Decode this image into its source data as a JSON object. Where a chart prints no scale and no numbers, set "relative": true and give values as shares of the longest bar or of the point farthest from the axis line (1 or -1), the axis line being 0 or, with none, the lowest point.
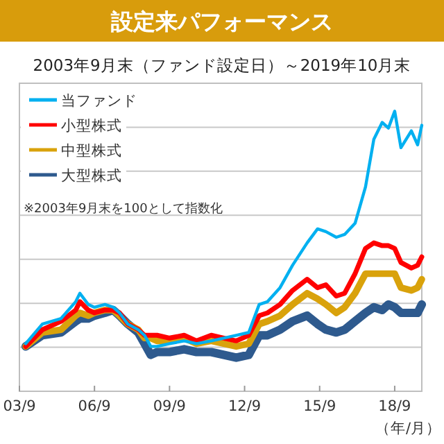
{
  "chart_data": {
    "type": "line",
    "title": "設定来パフォーマンス",
    "subtitle": "2003年9月末（ファンド設定日）～2019年10月末",
    "xlabel": "（年/月）",
    "annotations": [
      "※2003年9月末を100として指数化"
    ],
    "relative": true,
    "grid": "y",
    "legend": "top left",
    "marker": "none",
    "line_style": "solid",
    "xlim": [
      "2003-09",
      "2019-10"
    ],
    "xticks": [
      {
        "value": "2003-09",
        "label": "03/9"
      },
      {
        "value": "2006-09",
        "label": "06/9"
      },
      {
        "value": "2009-09",
        "label": "09/9"
      },
      {
        "value": "2012-09",
        "label": "12/9"
      },
      {
        "value": "2015-09",
        "label": "15/9"
      },
      {
        "value": "2018-09",
        "label": "18/9"
      }
    ],
    "x": [
      "2003-12",
      "2004-08",
      "2005-05",
      "2005-12",
      "2006-02",
      "2006-06",
      "2006-09",
      "2007-02",
      "2007-06",
      "2007-09",
      "2008-01",
      "2008-06",
      "2008-09",
      "2008-12",
      "2009-03",
      "2009-09",
      "2010-04",
      "2010-10",
      "2011-05",
      "2011-11",
      "2012-05",
      "2012-11",
      "2013-04",
      "2013-08",
      "2014-02",
      "2014-08",
      "2015-03",
      "2015-08",
      "2015-12",
      "2016-05",
      "2016-09",
      "2017-02",
      "2017-07",
      "2017-11",
      "2018-03",
      "2018-06",
      "2018-09",
      "2018-12",
      "2019-05",
      "2019-08",
      "2019-10"
    ],
    "series": [
      {
        "name": "当ファンド",
        "color": "#00b0f0",
        "values": [
          0.17,
          0.24,
          0.26,
          0.32,
          0.35,
          0.31,
          0.3,
          0.31,
          0.3,
          0.28,
          0.24,
          0.22,
          0.2,
          0.16,
          0.16,
          0.17,
          0.18,
          0.17,
          0.18,
          0.19,
          0.2,
          0.21,
          0.31,
          0.32,
          0.37,
          0.45,
          0.53,
          0.58,
          0.57,
          0.55,
          0.56,
          0.6,
          0.73,
          0.9,
          0.96,
          0.94,
          1.0,
          0.87,
          0.93,
          0.88,
          0.95
        ]
      },
      {
        "name": "小型株式",
        "color": "#ff0000",
        "values": [
          0.16,
          0.22,
          0.25,
          0.29,
          0.32,
          0.29,
          0.28,
          0.29,
          0.29,
          0.28,
          0.24,
          0.22,
          0.2,
          0.2,
          0.2,
          0.19,
          0.2,
          0.18,
          0.2,
          0.19,
          0.18,
          0.2,
          0.27,
          0.28,
          0.31,
          0.36,
          0.4,
          0.37,
          0.38,
          0.34,
          0.35,
          0.42,
          0.51,
          0.53,
          0.52,
          0.52,
          0.51,
          0.46,
          0.44,
          0.45,
          0.48
        ]
      },
      {
        "name": "中型株式",
        "color": "#d9a20b",
        "values": [
          0.16,
          0.21,
          0.22,
          0.27,
          0.28,
          0.27,
          0.28,
          0.29,
          0.29,
          0.27,
          0.24,
          0.22,
          0.19,
          0.19,
          0.18,
          0.18,
          0.19,
          0.17,
          0.18,
          0.17,
          0.16,
          0.17,
          0.24,
          0.25,
          0.27,
          0.31,
          0.35,
          0.33,
          0.31,
          0.28,
          0.3,
          0.35,
          0.42,
          0.42,
          0.42,
          0.42,
          0.42,
          0.37,
          0.36,
          0.37,
          0.4
        ]
      },
      {
        "name": "大型株式",
        "color": "#2e5a8e",
        "values": [
          0.16,
          0.2,
          0.21,
          0.25,
          0.26,
          0.26,
          0.27,
          0.28,
          0.29,
          0.27,
          0.24,
          0.21,
          0.17,
          0.13,
          0.14,
          0.14,
          0.15,
          0.14,
          0.14,
          0.13,
          0.12,
          0.13,
          0.2,
          0.2,
          0.22,
          0.25,
          0.27,
          0.24,
          0.22,
          0.21,
          0.22,
          0.25,
          0.28,
          0.3,
          0.29,
          0.31,
          0.3,
          0.28,
          0.28,
          0.28,
          0.31
        ]
      }
    ]
  }
}
